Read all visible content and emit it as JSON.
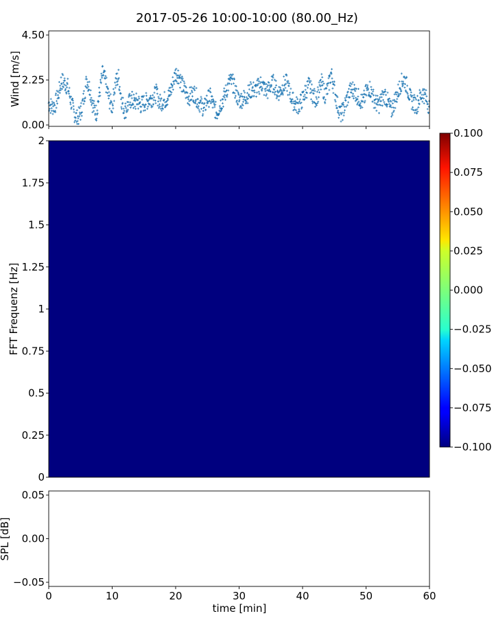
{
  "title": "2017-05-26 10:00-10:00 (80.00_Hz)",
  "chart_data": [
    {
      "type": "scatter",
      "panel": "wind",
      "ylabel": "Wind [m/s]",
      "ylim": [
        0,
        4.5
      ],
      "yticks": [
        "0.00",
        "2.25",
        "4.50"
      ],
      "xlim": [
        0,
        60
      ],
      "marker": "plus",
      "color": "#1f77b4",
      "series": [
        {
          "x": [
            0,
            0.5,
            1,
            1.5,
            2,
            2.5,
            3,
            3.5,
            4,
            4.5,
            5,
            5.5,
            6,
            6.5,
            7,
            7.5,
            8,
            8.5,
            9,
            9.5,
            10,
            10.5,
            11,
            11.5,
            12,
            12.5,
            13,
            13.5,
            14,
            14.5,
            15,
            15.5,
            16,
            16.5,
            17,
            17.5,
            18,
            18.5,
            19,
            19.5,
            20,
            20.5,
            21,
            21.5,
            22,
            22.5,
            23,
            23.5,
            24,
            24.5,
            25,
            25.5,
            26,
            26.5,
            27,
            27.5,
            28,
            28.5,
            29,
            29.5,
            30,
            30.5,
            31,
            31.5,
            32,
            32.5,
            33,
            33.5,
            34,
            34.5,
            35,
            35.5,
            36,
            36.5,
            37,
            37.5,
            38,
            38.5,
            39,
            39.5,
            40,
            40.5,
            41,
            41.5,
            42,
            42.5,
            43,
            43.5,
            44,
            44.5,
            45,
            45.5,
            46,
            46.5,
            47,
            47.5,
            48,
            48.5,
            49,
            49.5,
            50,
            50.5,
            51,
            51.5,
            52,
            52.5,
            53,
            53.5,
            54,
            54.5,
            55,
            55.5,
            56,
            56.5,
            57,
            57.5,
            58,
            58.5,
            59,
            59.5,
            60
          ],
          "y": [
            1.1,
            0.9,
            1.0,
            1.5,
            2.2,
            2.1,
            1.9,
            1.2,
            0.6,
            0.3,
            0.6,
            1.3,
            2.3,
            1.8,
            0.9,
            0.6,
            1.6,
            2.6,
            2.1,
            1.3,
            0.9,
            2.1,
            2.4,
            1.2,
            0.7,
            1.0,
            1.3,
            1.1,
            1.2,
            1.0,
            1.1,
            1.2,
            1.3,
            1.4,
            1.6,
            1.1,
            1.2,
            1.3,
            1.5,
            2.0,
            2.6,
            2.5,
            2.0,
            1.7,
            1.4,
            1.5,
            1.6,
            1.2,
            1.0,
            0.8,
            1.3,
            1.4,
            0.9,
            0.6,
            1.0,
            1.3,
            1.7,
            2.2,
            2.1,
            1.6,
            1.2,
            1.3,
            1.4,
            1.6,
            1.8,
            1.7,
            1.9,
            2.1,
            1.8,
            1.7,
            2.0,
            2.1,
            1.6,
            1.7,
            2.0,
            2.1,
            1.6,
            1.2,
            1.0,
            1.0,
            1.3,
            1.7,
            2.0,
            1.6,
            1.3,
            1.6,
            2.1,
            1.5,
            1.8,
            2.6,
            1.8,
            1.0,
            0.5,
            0.8,
            1.3,
            1.7,
            1.8,
            1.5,
            1.3,
            1.1,
            1.6,
            1.9,
            1.5,
            1.1,
            1.0,
            1.3,
            1.5,
            1.1,
            0.7,
            1.2,
            1.6,
            2.1,
            2.3,
            1.9,
            1.3,
            1.1,
            1.0,
            1.4,
            1.6,
            1.3,
            0.9
          ]
        }
      ]
    },
    {
      "type": "heatmap",
      "panel": "spectrogram",
      "ylabel": "FFT Frequenz [Hz]",
      "ylim": [
        0,
        2
      ],
      "yticks": [
        "0",
        "0.25",
        "0.5",
        "0.75",
        "1",
        "1.25",
        "1.5",
        "1.75",
        "2"
      ],
      "xlim": [
        0,
        60
      ],
      "value": -0.1,
      "fill_color": "#00007f",
      "colorbar": {
        "colormap": "jet",
        "range": [
          -0.1,
          0.1
        ],
        "ticks": [
          "0.100",
          "0.075",
          "0.050",
          "0.025",
          "0.000",
          "−0.025",
          "−0.050",
          "−0.075",
          "−0.100"
        ]
      }
    },
    {
      "type": "line",
      "panel": "spl",
      "ylabel": "SPL [dB]",
      "xlabel": "time [min]",
      "ylim": [
        -0.05,
        0.05
      ],
      "yticks": [
        "0.05",
        "0.00",
        "−0.05"
      ],
      "xlim": [
        0,
        60
      ],
      "xticks": [
        "0",
        "10",
        "20",
        "30",
        "40",
        "50",
        "60"
      ],
      "series": []
    }
  ]
}
